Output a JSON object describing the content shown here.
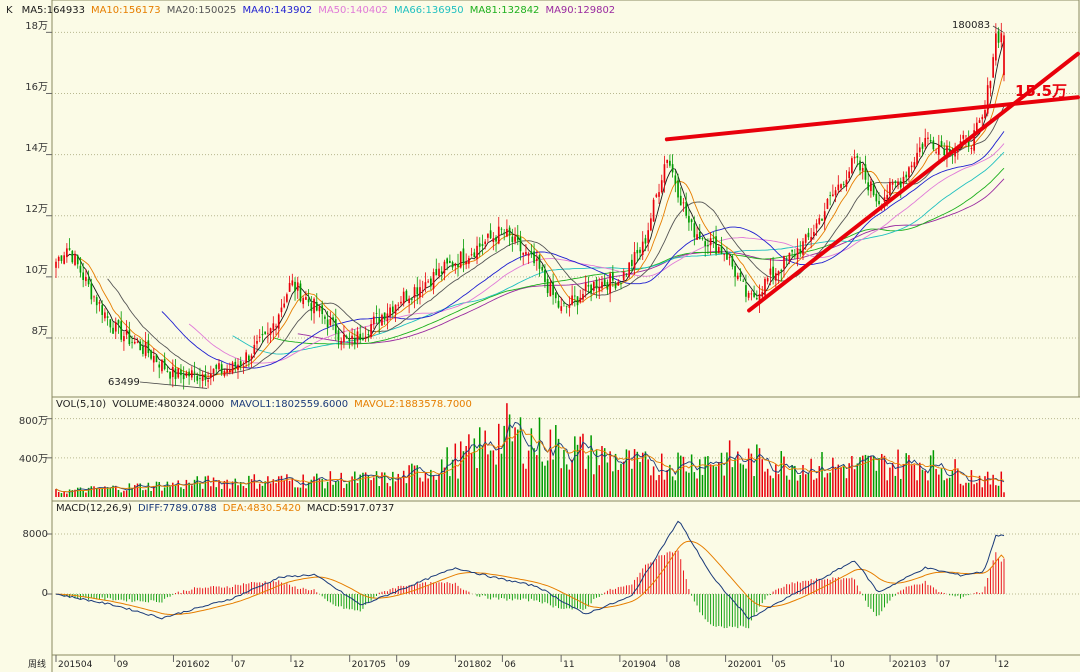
{
  "main_header": {
    "symbol": "K",
    "ma": [
      {
        "text": "MA5:164933",
        "color": "#1a1a1a"
      },
      {
        "text": "MA10:156173",
        "color": "#e67e00"
      },
      {
        "text": "MA20:150025",
        "color": "#555555"
      },
      {
        "text": "MA40:143902",
        "color": "#1f1fd0"
      },
      {
        "text": "MA50:140402",
        "color": "#e07ad8"
      },
      {
        "text": "MA66:136950",
        "color": "#20c0c0"
      },
      {
        "text": "MA81:132842",
        "color": "#1db01d"
      },
      {
        "text": "MA90:129802",
        "color": "#9a2aa0"
      }
    ]
  },
  "vol_header": {
    "items": [
      {
        "text": "VOL(5,10)",
        "color": "#222222"
      },
      {
        "text": "VOLUME:480324.0000",
        "color": "#222222"
      },
      {
        "text": "MAVOL1:1802559.6000",
        "color": "#1a3a7a"
      },
      {
        "text": "MAVOL2:1883578.7000",
        "color": "#e67e00"
      }
    ]
  },
  "macd_header": {
    "items": [
      {
        "text": "MACD(12,26,9)",
        "color": "#222222"
      },
      {
        "text": "DIFF:7789.0788",
        "color": "#1a3a7a"
      },
      {
        "text": "DEA:4830.5420",
        "color": "#e67e00"
      },
      {
        "text": "MACD:5917.0737",
        "color": "#222222"
      }
    ]
  },
  "price_axis": [
    "18万",
    "16万",
    "14万",
    "12万",
    "10万",
    "8万"
  ],
  "volume_axis": [
    "800万",
    "400万"
  ],
  "macd_axis": [
    "8000",
    "0"
  ],
  "x_axis": {
    "period_label": "周线",
    "ticks": [
      "201504",
      "09",
      "201602",
      "07",
      "12",
      "201705",
      "09",
      "201802",
      "06",
      "11",
      "201904",
      "08",
      "202001",
      "05",
      "10",
      "202103",
      "07",
      "12"
    ]
  },
  "annotations": {
    "high_value": "180083",
    "low_value": "63499",
    "resistance_label": "15.5万"
  },
  "colors": {
    "up": "#e8000b",
    "down": "#009a00",
    "trend": "#e8000b",
    "bg": "#fbfbe6"
  },
  "chart_data": {
    "type": "candlestick",
    "period": "weekly",
    "start": "2015-04",
    "end": "2021-12",
    "price_unit": "万",
    "ylim_price": [
      6.2,
      18.6
    ],
    "close_anchors": [
      {
        "x": "2015-04",
        "close": 10.5
      },
      {
        "x": "2015-05",
        "close": 11.0
      },
      {
        "x": "2015-07",
        "close": 9.5
      },
      {
        "x": "2015-09",
        "close": 8.3
      },
      {
        "x": "2015-12",
        "close": 7.5
      },
      {
        "x": "2016-02",
        "close": 6.8
      },
      {
        "x": "2016-04",
        "close": 6.8
      },
      {
        "x": "2016-07",
        "close": 7.0
      },
      {
        "x": "2016-10",
        "close": 8.0
      },
      {
        "x": "2016-12",
        "close": 9.8
      },
      {
        "x": "2017-02",
        "close": 9.0
      },
      {
        "x": "2017-05",
        "close": 7.8
      },
      {
        "x": "2017-09",
        "close": 9.2
      },
      {
        "x": "2018-02",
        "close": 10.5
      },
      {
        "x": "2018-06",
        "close": 11.5
      },
      {
        "x": "2018-09",
        "close": 10.3
      },
      {
        "x": "2018-11",
        "close": 8.9
      },
      {
        "x": "2019-02",
        "close": 9.8
      },
      {
        "x": "2019-04",
        "close": 9.9
      },
      {
        "x": "2019-06",
        "close": 11.0
      },
      {
        "x": "2019-08",
        "close": 14.0
      },
      {
        "x": "2019-10",
        "close": 11.6
      },
      {
        "x": "2020-01",
        "close": 10.8
      },
      {
        "x": "2020-03",
        "close": 9.2
      },
      {
        "x": "2020-05",
        "close": 10.1
      },
      {
        "x": "2020-08",
        "close": 11.2
      },
      {
        "x": "2020-10",
        "close": 12.6
      },
      {
        "x": "2020-12",
        "close": 13.8
      },
      {
        "x": "2021-02",
        "close": 12.5
      },
      {
        "x": "2021-04",
        "close": 13.2
      },
      {
        "x": "2021-06",
        "close": 14.5
      },
      {
        "x": "2021-08",
        "close": 14.2
      },
      {
        "x": "2021-10",
        "close": 14.5
      },
      {
        "x": "2021-11",
        "close": 15.2
      },
      {
        "x": "2021-12",
        "close": 17.9
      }
    ],
    "high": 18.0083,
    "low": 6.3499,
    "trendlines": [
      {
        "name": "resistance",
        "from": {
          "x": "2019-08",
          "y": 14.5
        },
        "to": {
          "x": "2021-12",
          "y": 15.6
        }
      },
      {
        "name": "support",
        "from": {
          "x": "2020-03",
          "y": 8.9
        },
        "to": {
          "x": "2021-12",
          "y": 15.2
        }
      }
    ],
    "volume_unit": "万",
    "ylim_volume": [
      0,
      950
    ],
    "volume_anchors": [
      {
        "x": "2015-04",
        "v": 60
      },
      {
        "x": "2016-06",
        "v": 170
      },
      {
        "x": "2017-09",
        "v": 200
      },
      {
        "x": "2018-03",
        "v": 450
      },
      {
        "x": "2018-06",
        "v": 700
      },
      {
        "x": "2019-06",
        "v": 340
      },
      {
        "x": "2020-01",
        "v": 420
      },
      {
        "x": "2020-10",
        "v": 330
      },
      {
        "x": "2021-06",
        "v": 380
      },
      {
        "x": "2021-12",
        "v": 160
      }
    ],
    "ylim_macd": [
      -4600,
      11000
    ],
    "macd_diff_anchors": [
      {
        "x": "2015-04",
        "v": 0
      },
      {
        "x": "2015-09",
        "v": -1500
      },
      {
        "x": "2016-01",
        "v": -3200
      },
      {
        "x": "2016-07",
        "v": -600
      },
      {
        "x": "2016-11",
        "v": 2200
      },
      {
        "x": "2017-02",
        "v": 2600
      },
      {
        "x": "2017-06",
        "v": -1500
      },
      {
        "x": "2018-02",
        "v": 3500
      },
      {
        "x": "2018-05",
        "v": 2300
      },
      {
        "x": "2018-09",
        "v": 1000
      },
      {
        "x": "2019-01",
        "v": -2700
      },
      {
        "x": "2019-05",
        "v": -300
      },
      {
        "x": "2019-09",
        "v": 9800
      },
      {
        "x": "2019-12",
        "v": 2000
      },
      {
        "x": "2020-03",
        "v": -3300
      },
      {
        "x": "2020-08",
        "v": 1000
      },
      {
        "x": "2020-12",
        "v": 4500
      },
      {
        "x": "2021-02",
        "v": 200
      },
      {
        "x": "2021-06",
        "v": 3500
      },
      {
        "x": "2021-09",
        "v": 2500
      },
      {
        "x": "2021-11",
        "v": 3000
      },
      {
        "x": "2021-12",
        "v": 7789
      }
    ],
    "macd_dea": 4830.542,
    "macd_hist": 5917.0737
  }
}
